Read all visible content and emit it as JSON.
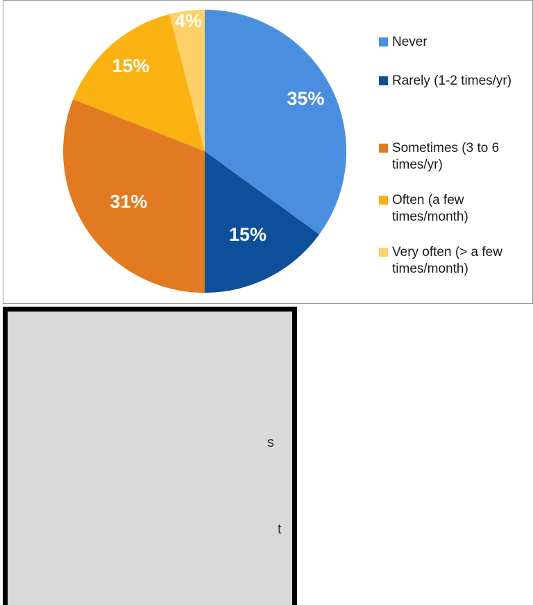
{
  "chart_data": {
    "type": "pie",
    "categories": [
      "Never",
      "Rarely (1-2 times/yr)",
      "Sometimes (3 to 6 times/yr)",
      "Often (a few times/month)",
      "Very often (> a few times/month)"
    ],
    "values": [
      35,
      15,
      31,
      15,
      4
    ],
    "value_labels": [
      "35%",
      "15%",
      "31%",
      "15%",
      "4%"
    ],
    "colors": [
      "#4a8fdf",
      "#0e4f9a",
      "#e27a22",
      "#fab212",
      "#fdd168"
    ],
    "legend_position": "right"
  },
  "fragments": {
    "a": "s",
    "b": "t"
  }
}
